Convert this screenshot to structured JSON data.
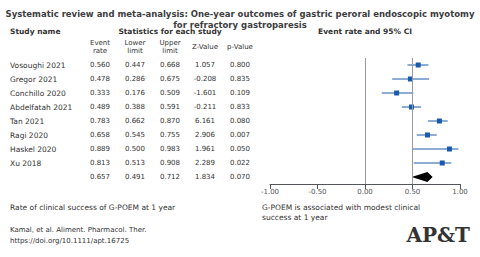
{
  "chart_data": {
    "type": "forest",
    "title": "Systematic review and meta-analysis: One-year outcomes of gastric peroral endoscopic myotomy\nfor refractory gastroparesis",
    "categories": [
      "Vosoughi 2021",
      "Gregor 2021",
      "Conchillo 2020",
      "Abdelfatah 2021",
      "Tan 2021",
      "Ragi 2020",
      "Haskel 2020",
      "Xu 2018",
      null
    ],
    "series": [
      {
        "marker": "square",
        "color": "#1a5aaa",
        "values": [
          0.56,
          0.478,
          0.333,
          0.489,
          0.783,
          0.658,
          0.889,
          0.813,
          null
        ],
        "lower": [
          0.447,
          0.286,
          0.176,
          0.388,
          0.662,
          0.545,
          0.5,
          0.513,
          null
        ],
        "upper": [
          0.668,
          0.675,
          0.509,
          0.591,
          0.87,
          0.755,
          0.983,
          0.908,
          null
        ]
      },
      {
        "marker": "diamond",
        "color": "#000000",
        "values": [
          null,
          null,
          null,
          null,
          null,
          null,
          null,
          null,
          0.657
        ],
        "lower": [
          null,
          null,
          null,
          null,
          null,
          null,
          null,
          null,
          0.491
        ],
        "upper": [
          null,
          null,
          null,
          null,
          null,
          null,
          null,
          null,
          0.712
        ]
      }
    ],
    "xlim": [
      -1.0,
      1.0
    ],
    "xticks": [
      {
        "value": -1.0,
        "label": "-1.00"
      },
      {
        "value": -0.5,
        "label": "-0.50"
      },
      {
        "value": 0,
        "label": "0.00"
      },
      {
        "value": 0.5,
        "label": "0.50"
      },
      {
        "value": 1.0,
        "label": "1.00"
      }
    ],
    "reference_lines": [
      0,
      0.5
    ],
    "grid": false,
    "table": {
      "headers": [
        "Study name",
        "Statistics for each study",
        "Event rate and 95% CI"
      ],
      "columns": [
        {
          "label": "Event\nrate",
          "cells": [
            "0.560",
            "0.478",
            "0.333",
            "0.489",
            "0.783",
            "0.658",
            "0.889",
            "0.813",
            "0.657"
          ]
        },
        {
          "label": "Lower\nlimit",
          "cells": [
            "0.447",
            "0.286",
            "0.176",
            "0.388",
            "0.662",
            "0.545",
            "0.500",
            "0.513",
            "0.491"
          ]
        },
        {
          "label": "Upper\nlimit",
          "cells": [
            "0.668",
            "0.675",
            "0.509",
            "0.591",
            "0.870",
            "0.755",
            "0.983",
            "0.908",
            "0.712"
          ]
        },
        {
          "label": "Z-Value",
          "cells": [
            "1.057",
            "-0.208",
            "-1.601",
            "-0.211",
            "6.161",
            "2.906",
            "1.961",
            "2.289",
            "1.834"
          ]
        },
        {
          "label": "p-Value",
          "cells": [
            "0.800",
            "0.835",
            "0.109",
            "0.833",
            "0.080",
            "0.007",
            "0.050",
            "0.022",
            "0.070"
          ]
        }
      ]
    },
    "annotations": [
      "Rate of clinical success of G-POEM at 1 year",
      "G-POEM is associated with modest clinical",
      "success at 1 year",
      "Kamal, et al. Aliment. Pharmacol. Ther.",
      "https://doi.org/10.1111/apt.16725",
      "AP&T"
    ]
  }
}
